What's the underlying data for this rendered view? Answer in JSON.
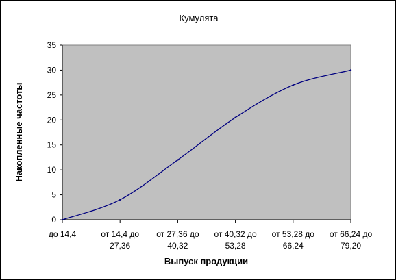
{
  "chart_data": {
    "type": "line",
    "title": "Кумулята",
    "xlabel": "Выпуск продукции",
    "ylabel": "Накопленные частоты",
    "categories": [
      [
        "до 14,4"
      ],
      [
        "от 14,4 до",
        "27,36"
      ],
      [
        "от 27,36 до",
        "40,32"
      ],
      [
        "от 40,32 до",
        "53,28"
      ],
      [
        "от 53,28 до",
        "66,24"
      ],
      [
        "от 66,24 до",
        "79,20"
      ]
    ],
    "series": [
      {
        "values": [
          0,
          4,
          12,
          20.5,
          27,
          30
        ]
      }
    ],
    "ylim": [
      0,
      35
    ],
    "yticks": [
      0,
      5,
      10,
      15,
      20,
      25,
      30,
      35
    ],
    "grid": false,
    "legend": "none",
    "colors": {
      "plot_bg": "#c0c0c0",
      "line": "#000080",
      "axis": "#000000"
    }
  }
}
